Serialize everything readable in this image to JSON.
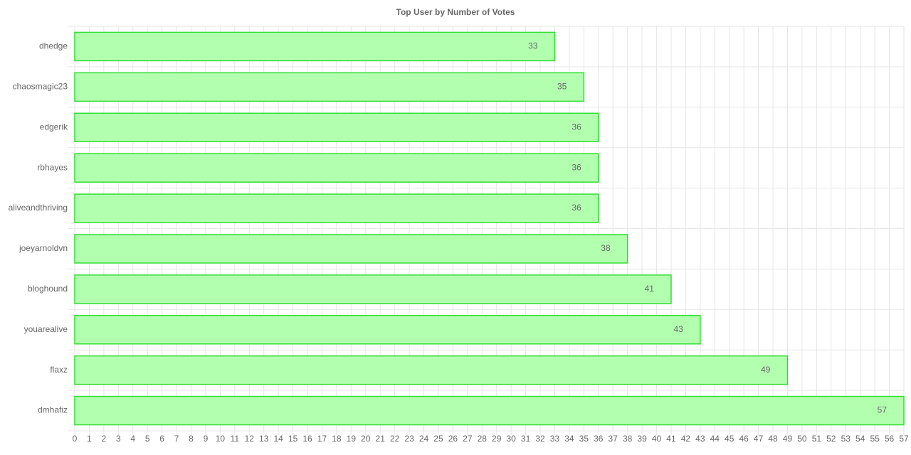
{
  "chart_data": {
    "type": "bar",
    "orientation": "horizontal",
    "title": "Top User by Number of Votes",
    "categories": [
      "dhedge",
      "chaosmagic23",
      "edgerik",
      "rbhayes",
      "aliveandthriving",
      "joeyarnoldvn",
      "bloghound",
      "youarealive",
      "flaxz",
      "dmhafiz"
    ],
    "values": [
      33,
      35,
      36,
      36,
      36,
      38,
      41,
      43,
      49,
      57
    ],
    "color": "#b3ffb0",
    "border_color": "#33dd33",
    "xlim": [
      0,
      57
    ],
    "xticks": [
      0,
      1,
      2,
      3,
      4,
      5,
      6,
      7,
      8,
      9,
      10,
      11,
      12,
      13,
      14,
      15,
      16,
      17,
      18,
      19,
      20,
      21,
      22,
      23,
      24,
      25,
      26,
      27,
      28,
      29,
      30,
      31,
      32,
      33,
      34,
      35,
      36,
      37,
      38,
      39,
      40,
      41,
      42,
      43,
      44,
      45,
      46,
      47,
      48,
      49,
      50,
      51,
      52,
      53,
      54,
      55,
      56,
      57
    ],
    "grid": true
  }
}
